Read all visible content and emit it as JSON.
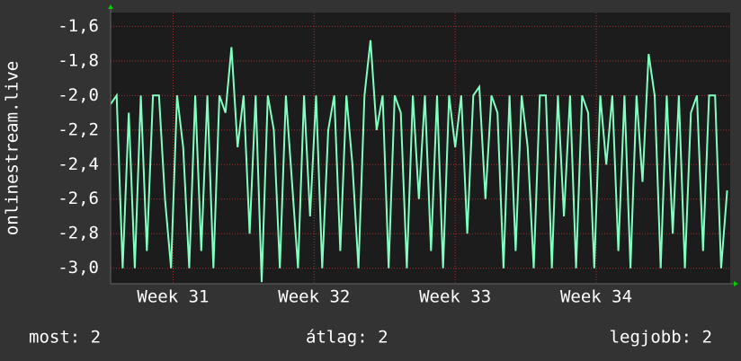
{
  "chart_data": {
    "type": "line",
    "y_label": "onlinestream.live",
    "x": [
      0,
      0.3,
      0.6,
      0.9,
      1.2,
      1.5,
      1.8,
      2.1,
      2.4,
      2.7,
      3,
      3.3,
      3.6,
      3.9,
      4.2,
      4.5,
      4.8,
      5.1,
      5.4,
      5.7,
      6,
      6.3,
      6.6,
      6.9,
      7.2,
      7.5,
      7.8,
      8.1,
      8.4,
      8.7,
      9,
      9.3,
      9.6,
      9.9,
      10.2,
      10.5,
      10.8,
      11.1,
      11.4,
      11.7,
      12,
      12.3,
      12.6,
      12.9,
      13.2,
      13.5,
      13.8,
      14.1,
      14.4,
      14.7,
      15,
      15.3,
      15.6,
      15.9,
      16.2,
      16.5,
      16.8,
      17.1,
      17.4,
      17.7,
      18,
      18.3,
      18.6,
      18.9,
      19.2,
      19.5,
      19.8,
      20.1,
      20.4,
      20.7,
      21,
      21.3,
      21.6,
      21.9,
      22.2,
      22.5,
      22.8,
      23.1,
      23.4,
      23.7,
      24,
      24.3,
      24.6,
      24.9,
      25.2,
      25.5,
      25.8,
      26.1,
      26.4,
      26.7,
      27,
      27.3,
      27.6,
      27.9,
      28.2,
      28.5,
      28.8,
      29.1,
      29.4,
      29.7,
      30,
      30.3,
      30.6
    ],
    "series": [
      {
        "name": "onlinestream.live",
        "color": "#80ffc0",
        "values": [
          -2.05,
          -2.0,
          -3.0,
          -2.1,
          -3.0,
          -2.0,
          -2.9,
          -2.0,
          -2.0,
          -2.6,
          -3.0,
          -2.0,
          -2.3,
          -3.0,
          -2.0,
          -2.9,
          -2.0,
          -3.0,
          -2.0,
          -2.1,
          -1.72,
          -2.3,
          -2.0,
          -2.8,
          -2.0,
          -3.08,
          -2.0,
          -2.2,
          -3.0,
          -2.0,
          -2.5,
          -3.0,
          -2.0,
          -2.7,
          -2.0,
          -3.0,
          -2.2,
          -2.0,
          -2.9,
          -2.0,
          -2.4,
          -3.0,
          -2.0,
          -1.68,
          -2.2,
          -2.0,
          -3.0,
          -2.0,
          -2.1,
          -3.0,
          -2.0,
          -2.6,
          -2.0,
          -2.9,
          -2.0,
          -3.0,
          -2.0,
          -2.3,
          -2.0,
          -2.8,
          -2.0,
          -1.95,
          -2.6,
          -2.0,
          -2.1,
          -3.0,
          -2.0,
          -2.9,
          -2.0,
          -2.3,
          -3.0,
          -2.0,
          -2.0,
          -3.0,
          -2.0,
          -2.7,
          -2.0,
          -3.0,
          -2.0,
          -2.1,
          -3.0,
          -2.0,
          -2.4,
          -2.0,
          -2.9,
          -2.0,
          -3.0,
          -2.0,
          -2.5,
          -1.76,
          -2.0,
          -3.0,
          -2.0,
          -2.8,
          -2.0,
          -3.0,
          -2.1,
          -2.0,
          -2.9,
          -2.0,
          -2.0,
          -3.0,
          -2.55
        ]
      }
    ],
    "xlim": [
      0,
      30.75
    ],
    "xticks": [
      {
        "value": 3.1,
        "label": "Week 31"
      },
      {
        "value": 10.1,
        "label": "Week 32"
      },
      {
        "value": 17.1,
        "label": "Week 33"
      },
      {
        "value": 24.1,
        "label": "Week 34"
      }
    ],
    "ylim": [
      -3.09,
      -1.52
    ],
    "yticks": [
      {
        "value": -3.0,
        "label": "-3,0"
      },
      {
        "value": -2.8,
        "label": "-2,8"
      },
      {
        "value": -2.6,
        "label": "-2,6"
      },
      {
        "value": -2.4,
        "label": "-2,4"
      },
      {
        "value": -2.2,
        "label": "-2,2"
      },
      {
        "value": -2.0,
        "label": "-2,0"
      },
      {
        "value": -1.8,
        "label": "-1,8"
      },
      {
        "value": -1.6,
        "label": "-1,6"
      }
    ],
    "grid": true,
    "footer": {
      "current": "most: 2",
      "average": "átlag: 2",
      "best": "legjobb: 2"
    }
  }
}
